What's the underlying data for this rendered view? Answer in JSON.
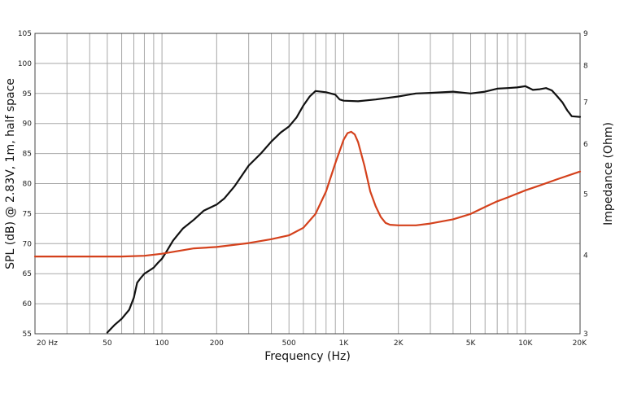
{
  "chart_data": {
    "type": "line",
    "xlabel": "Frequency (Hz)",
    "ylabel": "SPL (dB) @ 2.83V, 1m, half space",
    "y2label": "Impedance (Ohm)",
    "xscale": "log",
    "xlim": [
      20,
      20000
    ],
    "ylim": [
      55,
      105
    ],
    "y2lim": [
      3,
      9
    ],
    "grid": true,
    "xticks": [
      {
        "v": 20,
        "label": "20  Hz"
      },
      {
        "v": 50,
        "label": "50"
      },
      {
        "v": 100,
        "label": "100"
      },
      {
        "v": 200,
        "label": "200"
      },
      {
        "v": 500,
        "label": "500"
      },
      {
        "v": 1000,
        "label": "1K"
      },
      {
        "v": 2000,
        "label": "2K"
      },
      {
        "v": 5000,
        "label": "5K"
      },
      {
        "v": 10000,
        "label": "10K"
      },
      {
        "v": 20000,
        "label": "20K"
      }
    ],
    "yticks": [
      {
        "v": 55,
        "label": "55"
      },
      {
        "v": 60,
        "label": "60"
      },
      {
        "v": 65,
        "label": "65"
      },
      {
        "v": 70,
        "label": "70"
      },
      {
        "v": 75,
        "label": "75"
      },
      {
        "v": 80,
        "label": "80"
      },
      {
        "v": 85,
        "label": "85"
      },
      {
        "v": 90,
        "label": "90"
      },
      {
        "v": 95,
        "label": "95"
      },
      {
        "v": 100,
        "label": "100"
      },
      {
        "v": 105,
        "label": "105"
      }
    ],
    "y2ticks": [
      {
        "v": 3,
        "label": "3"
      },
      {
        "v": 4,
        "label": "4"
      },
      {
        "v": 5,
        "label": "5"
      },
      {
        "v": 6,
        "label": "6"
      },
      {
        "v": 7,
        "label": "7"
      },
      {
        "v": 8,
        "label": "8"
      },
      {
        "v": 9,
        "label": "9"
      }
    ],
    "series": [
      {
        "axis": "left",
        "color": "#111111",
        "points": [
          [
            50,
            55.2
          ],
          [
            55,
            56.5
          ],
          [
            60,
            57.5
          ],
          [
            66,
            59.0
          ],
          [
            70,
            61.0
          ],
          [
            73,
            63.5
          ],
          [
            76,
            64.2
          ],
          [
            80,
            65.0
          ],
          [
            85,
            65.5
          ],
          [
            90,
            66.0
          ],
          [
            95,
            66.8
          ],
          [
            100,
            67.5
          ],
          [
            105,
            68.5
          ],
          [
            115,
            70.5
          ],
          [
            130,
            72.5
          ],
          [
            150,
            74.0
          ],
          [
            170,
            75.5
          ],
          [
            200,
            76.5
          ],
          [
            220,
            77.5
          ],
          [
            250,
            79.5
          ],
          [
            300,
            83.0
          ],
          [
            350,
            85.0
          ],
          [
            400,
            87.0
          ],
          [
            450,
            88.5
          ],
          [
            500,
            89.5
          ],
          [
            550,
            91.0
          ],
          [
            600,
            93.0
          ],
          [
            650,
            94.5
          ],
          [
            700,
            95.4
          ],
          [
            800,
            95.2
          ],
          [
            900,
            94.8
          ],
          [
            950,
            94.0
          ],
          [
            1000,
            93.8
          ],
          [
            1200,
            93.7
          ],
          [
            1500,
            94.0
          ],
          [
            2000,
            94.5
          ],
          [
            2500,
            95.0
          ],
          [
            3000,
            95.1
          ],
          [
            4000,
            95.3
          ],
          [
            5000,
            95.0
          ],
          [
            6000,
            95.3
          ],
          [
            7000,
            95.8
          ],
          [
            8000,
            95.9
          ],
          [
            9000,
            96.0
          ],
          [
            10000,
            96.2
          ],
          [
            11000,
            95.6
          ],
          [
            12000,
            95.7
          ],
          [
            13000,
            95.9
          ],
          [
            14000,
            95.5
          ],
          [
            15000,
            94.5
          ],
          [
            16000,
            93.5
          ],
          [
            17000,
            92.2
          ],
          [
            18000,
            91.2
          ],
          [
            20000,
            91.1
          ]
        ]
      },
      {
        "axis": "right",
        "color": "#d4411c",
        "points": [
          [
            20,
            3.98
          ],
          [
            40,
            3.98
          ],
          [
            60,
            3.98
          ],
          [
            80,
            3.99
          ],
          [
            100,
            4.02
          ],
          [
            150,
            4.1
          ],
          [
            200,
            4.12
          ],
          [
            300,
            4.18
          ],
          [
            400,
            4.24
          ],
          [
            500,
            4.3
          ],
          [
            600,
            4.42
          ],
          [
            700,
            4.65
          ],
          [
            800,
            5.05
          ],
          [
            900,
            5.6
          ],
          [
            1000,
            6.1
          ],
          [
            1050,
            6.25
          ],
          [
            1100,
            6.28
          ],
          [
            1150,
            6.22
          ],
          [
            1200,
            6.05
          ],
          [
            1300,
            5.55
          ],
          [
            1400,
            5.05
          ],
          [
            1500,
            4.78
          ],
          [
            1600,
            4.6
          ],
          [
            1700,
            4.5
          ],
          [
            1800,
            4.47
          ],
          [
            2000,
            4.46
          ],
          [
            2500,
            4.46
          ],
          [
            3000,
            4.49
          ],
          [
            4000,
            4.56
          ],
          [
            5000,
            4.65
          ],
          [
            6000,
            4.77
          ],
          [
            7000,
            4.87
          ],
          [
            8000,
            4.94
          ],
          [
            10000,
            5.07
          ],
          [
            12000,
            5.16
          ],
          [
            15000,
            5.28
          ],
          [
            20000,
            5.43
          ]
        ]
      }
    ]
  }
}
